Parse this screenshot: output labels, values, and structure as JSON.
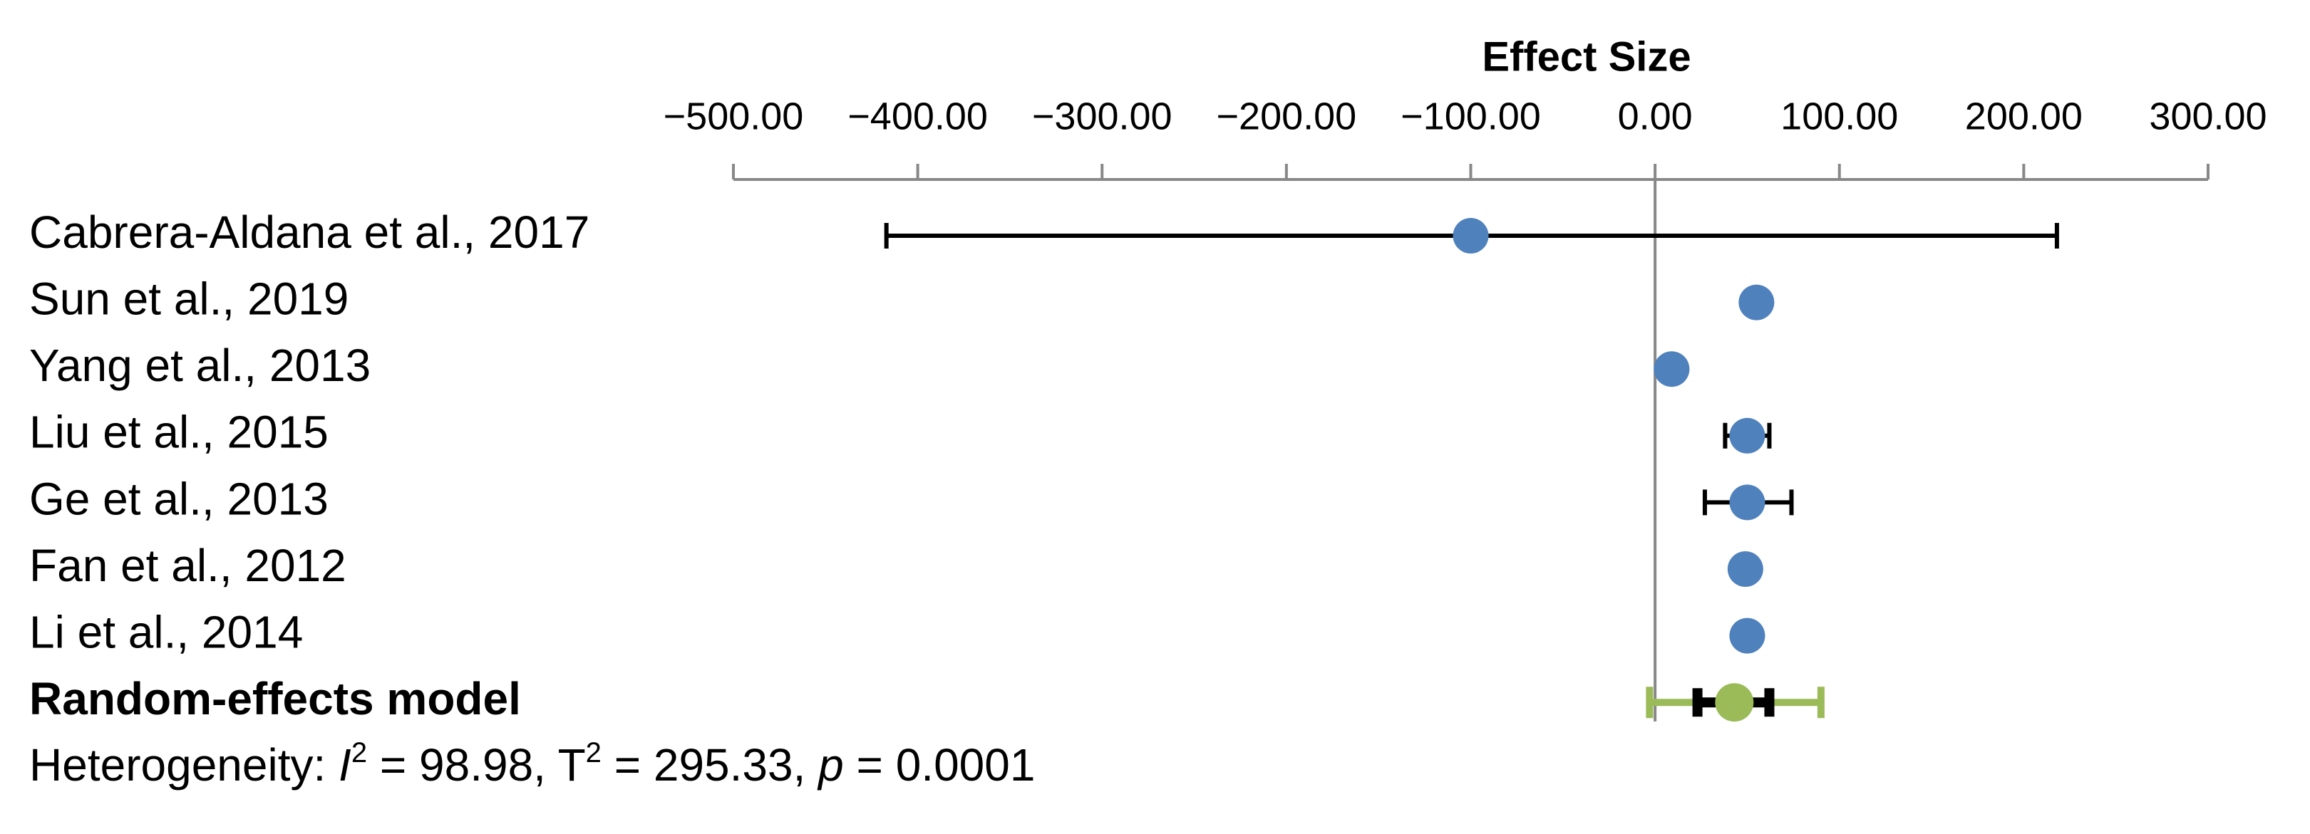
{
  "chart_data": {
    "type": "forest",
    "x_label": "Effect Size",
    "xlim": [
      -500,
      300
    ],
    "xticks": [
      {
        "value": -500,
        "label": "−500.00"
      },
      {
        "value": -400,
        "label": "−400.00"
      },
      {
        "value": -300,
        "label": "−300.00"
      },
      {
        "value": -200,
        "label": "−200.00"
      },
      {
        "value": -100,
        "label": "−100.00"
      },
      {
        "value": 0,
        "label": "0.00"
      },
      {
        "value": 100,
        "label": "100.00"
      },
      {
        "value": 200,
        "label": "200.00"
      },
      {
        "value": 300,
        "label": "300.00"
      }
    ],
    "categories": [
      "Cabrera-Aldana et al., 2017",
      "Sun et al., 2019",
      "Yang et al., 2013",
      "Liu et al., 2015",
      "Ge et al., 2013",
      "Fan et al., 2012",
      "Li et al., 2014"
    ],
    "values": [
      -100,
      55,
      9,
      50,
      50,
      49,
      50
    ],
    "ci_lower": [
      -417,
      null,
      null,
      38,
      27,
      null,
      null
    ],
    "ci_upper": [
      218,
      null,
      null,
      62,
      74,
      null,
      null
    ],
    "color": "#4f81bd",
    "summary": {
      "label": "Random-effects model",
      "value": 43,
      "ci_lower": 23,
      "ci_upper": 62,
      "pi_lower": -3,
      "pi_upper": 90,
      "color": "#9bbb59"
    },
    "heterogeneity": [
      {
        "text": "Heterogeneity: "
      },
      {
        "text": "I",
        "style": "italic"
      },
      {
        "text": "2",
        "style": "sup"
      },
      {
        "text": " = 98.98, T"
      },
      {
        "text": "2",
        "style": "sup"
      },
      {
        "text": " = 295.33, "
      },
      {
        "text": "p",
        "style": "italic"
      },
      {
        "text": " = 0.0001"
      }
    ]
  }
}
